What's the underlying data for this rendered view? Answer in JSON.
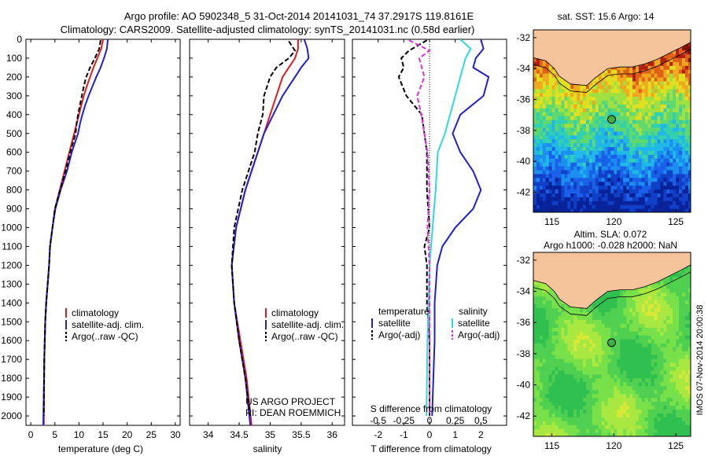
{
  "header": {
    "line1": "Argo profile: AO 5902348_5 31-Oct-2014 20141031_74 37.2917S 119.8161E",
    "line2": "Climatology: CARS2009. Satellite-adjusted climatology: synTS_20141031.nc (0.58d earlier)"
  },
  "colors": {
    "climatology": "#e41a1c",
    "satellite": "#1f1fd6",
    "argo": "#000000",
    "satellite_s": "#30d8e0",
    "argo_s": "#e030e0",
    "land": "#f5c49a"
  },
  "project": {
    "line1": "US ARGO PROJECT",
    "line2": "PI: DEAN ROEMMICH"
  },
  "chart_data": [
    {
      "type": "line",
      "xlabel": "temperature (deg C)",
      "xlim": [
        -1,
        31
      ],
      "xticks": [
        "0",
        "5",
        "10",
        "15",
        "20",
        "25",
        "30"
      ],
      "ylim": [
        0,
        2050
      ],
      "yticks": [
        "0",
        "100",
        "200",
        "300",
        "400",
        "500",
        "600",
        "700",
        "800",
        "900",
        "1000",
        "1100",
        "1200",
        "1300",
        "1400",
        "1500",
        "1600",
        "1700",
        "1800",
        "1900",
        "2000"
      ],
      "legend": [
        "climatology",
        "satellite-adj. clim.",
        "Argo(..raw -QC)"
      ],
      "series": [
        {
          "name": "climatology",
          "color": "#e41a1c",
          "dash": "",
          "x": [
            15.0,
            14.6,
            13.8,
            13.0,
            12.3,
            11.6,
            11.0,
            10.5,
            10.0,
            9.5,
            9.0,
            8.0,
            7.0,
            6.0,
            5.0,
            4.5,
            4.0,
            3.8,
            3.5,
            3.2,
            3.0,
            2.8,
            2.7
          ],
          "y": [
            0,
            50,
            100,
            150,
            200,
            250,
            300,
            350,
            400,
            450,
            500,
            600,
            700,
            800,
            900,
            1000,
            1100,
            1200,
            1300,
            1400,
            1500,
            1700,
            2050
          ]
        },
        {
          "name": "satellite-adj. clim.",
          "color": "#1f1fd6",
          "dash": "",
          "x": [
            16.0,
            15.8,
            15.2,
            14.5,
            13.6,
            12.8,
            12.0,
            11.3,
            10.7,
            10.2,
            9.8,
            8.5,
            7.5,
            6.2,
            5.1,
            4.5,
            4.0,
            3.8,
            3.5,
            3.2,
            3.0,
            2.8,
            2.6
          ],
          "y": [
            0,
            50,
            100,
            150,
            200,
            250,
            300,
            350,
            400,
            450,
            500,
            600,
            700,
            800,
            900,
            1000,
            1100,
            1200,
            1300,
            1400,
            1500,
            1700,
            2050
          ]
        },
        {
          "name": "Argo(..raw -QC)",
          "color": "#000000",
          "dash": "6,3",
          "x": [
            14.5,
            14.2,
            13.3,
            12.3,
            11.5,
            11.0,
            10.6,
            10.2,
            9.8,
            9.5,
            9.3,
            8.2,
            7.2,
            6.1,
            5.0,
            4.5,
            4.0,
            3.8,
            3.5,
            3.2,
            3.0,
            2.8,
            2.7
          ],
          "y": [
            5,
            50,
            100,
            150,
            200,
            250,
            300,
            350,
            400,
            450,
            500,
            600,
            700,
            800,
            900,
            1000,
            1100,
            1200,
            1300,
            1400,
            1500,
            1700,
            2000
          ]
        }
      ]
    },
    {
      "type": "line",
      "xlabel": "salinity",
      "xlim": [
        33.7,
        36.2
      ],
      "xticks": [
        "34",
        "34.5",
        "35",
        "35.5",
        "36"
      ],
      "ylim": [
        0,
        2050
      ],
      "legend": [
        "climatology",
        "satellite-adj. clim.",
        "Argo(..raw -QC)"
      ],
      "series": [
        {
          "name": "climatology",
          "color": "#e41a1c",
          "dash": "",
          "x": [
            35.45,
            35.45,
            35.4,
            35.3,
            35.2,
            35.1,
            35.0,
            34.9,
            34.8,
            34.6,
            34.45,
            34.38,
            34.42,
            34.52,
            34.62,
            34.7
          ],
          "y": [
            0,
            50,
            100,
            150,
            200,
            300,
            400,
            500,
            600,
            800,
            1000,
            1200,
            1400,
            1600,
            1800,
            2050
          ]
        },
        {
          "name": "satellite-adj. clim.",
          "color": "#1f1fd6",
          "dash": "",
          "x": [
            35.55,
            35.6,
            35.62,
            35.5,
            35.4,
            35.2,
            35.05,
            34.9,
            34.8,
            34.6,
            34.45,
            34.38,
            34.42,
            34.5,
            34.6,
            34.68
          ],
          "y": [
            0,
            50,
            100,
            150,
            200,
            300,
            400,
            500,
            600,
            800,
            1000,
            1200,
            1400,
            1600,
            1800,
            2050
          ]
        },
        {
          "name": "Argo(..raw -QC)",
          "color": "#000000",
          "dash": "6,3",
          "x": [
            35.3,
            35.4,
            35.3,
            35.1,
            35.0,
            34.9,
            34.88,
            34.8,
            34.75,
            34.55,
            34.42,
            34.38,
            34.42,
            34.5,
            34.6,
            34.68
          ],
          "y": [
            10,
            60,
            100,
            150,
            200,
            300,
            400,
            500,
            600,
            800,
            1000,
            1200,
            1400,
            1600,
            1800,
            2000
          ]
        }
      ]
    },
    {
      "type": "line",
      "xlabel": "T difference from climatology",
      "xlabel_top": "S difference from climatology",
      "xlim": [
        -3,
        3
      ],
      "xticks": [
        "-2",
        "-1",
        "0",
        "1",
        "2"
      ],
      "xticks_top": [
        "-0.5",
        "-0.25",
        "0",
        "0.25",
        "0.5"
      ],
      "ylim": [
        0,
        2050
      ],
      "legend_titles": [
        "temperature",
        "salinity"
      ],
      "legend": [
        "satellite",
        "Argo(-adj)",
        "satellite",
        "Argo(-adj)"
      ],
      "series": [
        {
          "name": "satellite",
          "color": "#1f1fd6",
          "dash": "",
          "x": [
            2.0,
            2.1,
            1.8,
            1.7,
            2.3,
            2.1,
            1.2,
            0.9,
            1.2,
            1.7,
            2.0,
            1.7,
            1.0,
            0.5,
            0.3,
            0.2,
            0.2,
            0.1
          ],
          "y": [
            0,
            50,
            100,
            150,
            200,
            300,
            400,
            500,
            600,
            700,
            800,
            900,
            1000,
            1100,
            1200,
            1400,
            1600,
            2000
          ]
        },
        {
          "name": "Argo(-adj)",
          "color": "#000000",
          "dash": "6,3",
          "x": [
            -0.1,
            -0.8,
            -1.1,
            -1.0,
            -1.2,
            -0.9,
            -0.3,
            -0.2,
            -0.1,
            -0.1,
            0.0,
            -0.2,
            -0.1,
            -0.1,
            0.0,
            0.0
          ],
          "y": [
            5,
            60,
            100,
            150,
            200,
            300,
            400,
            500,
            600,
            800,
            1000,
            1100,
            1200,
            1400,
            1600,
            2000
          ]
        },
        {
          "name": "satellite",
          "color": "#30d8e0",
          "dash": "",
          "x": [
            0.3,
            0.4,
            0.35,
            0.3,
            0.25,
            0.2,
            0.15,
            0.08,
            0.06,
            0.03,
            0.0,
            -0.01,
            -0.02,
            -0.03
          ],
          "y": [
            0,
            50,
            100,
            200,
            300,
            400,
            500,
            600,
            800,
            1000,
            1200,
            1400,
            1600,
            2000
          ]
        },
        {
          "name": "Argo(-adj)",
          "color": "#e030e0",
          "dash": "6,3",
          "x": [
            -0.2,
            0.0,
            -0.1,
            -0.05,
            -0.12,
            -0.08,
            -0.02,
            0.0,
            -0.02,
            0.0,
            0.0,
            0.0
          ],
          "y": [
            5,
            60,
            100,
            200,
            300,
            400,
            600,
            800,
            1000,
            1200,
            1600,
            2000
          ]
        }
      ]
    },
    {
      "type": "heatmap",
      "title": "sat. SST: 15.6 Argo: 14",
      "xticks": [
        "115",
        "120",
        "125"
      ],
      "yticks": [
        "-32",
        "-34",
        "-36",
        "-38",
        "-40",
        "-42"
      ],
      "xlim": [
        113.5,
        126.2
      ],
      "ylim": [
        -43.3,
        -31.5
      ],
      "marker": {
        "lon": 119.8161,
        "lat": -37.2917
      }
    },
    {
      "type": "heatmap",
      "title": "Altim. SLA: 0.072",
      "subtitle": "Argo h1000: -0.028 h2000: NaN",
      "xticks": [
        "115",
        "120",
        "125"
      ],
      "yticks": [
        "-32",
        "-34",
        "-36",
        "-38",
        "-40",
        "-42"
      ],
      "xlim": [
        113.5,
        126.2
      ],
      "ylim": [
        -43.3,
        -31.5
      ],
      "marker": {
        "lon": 119.8161,
        "lat": -37.2917
      }
    }
  ],
  "stamp": "IMOS 07-Nov-2014 20:00:38"
}
